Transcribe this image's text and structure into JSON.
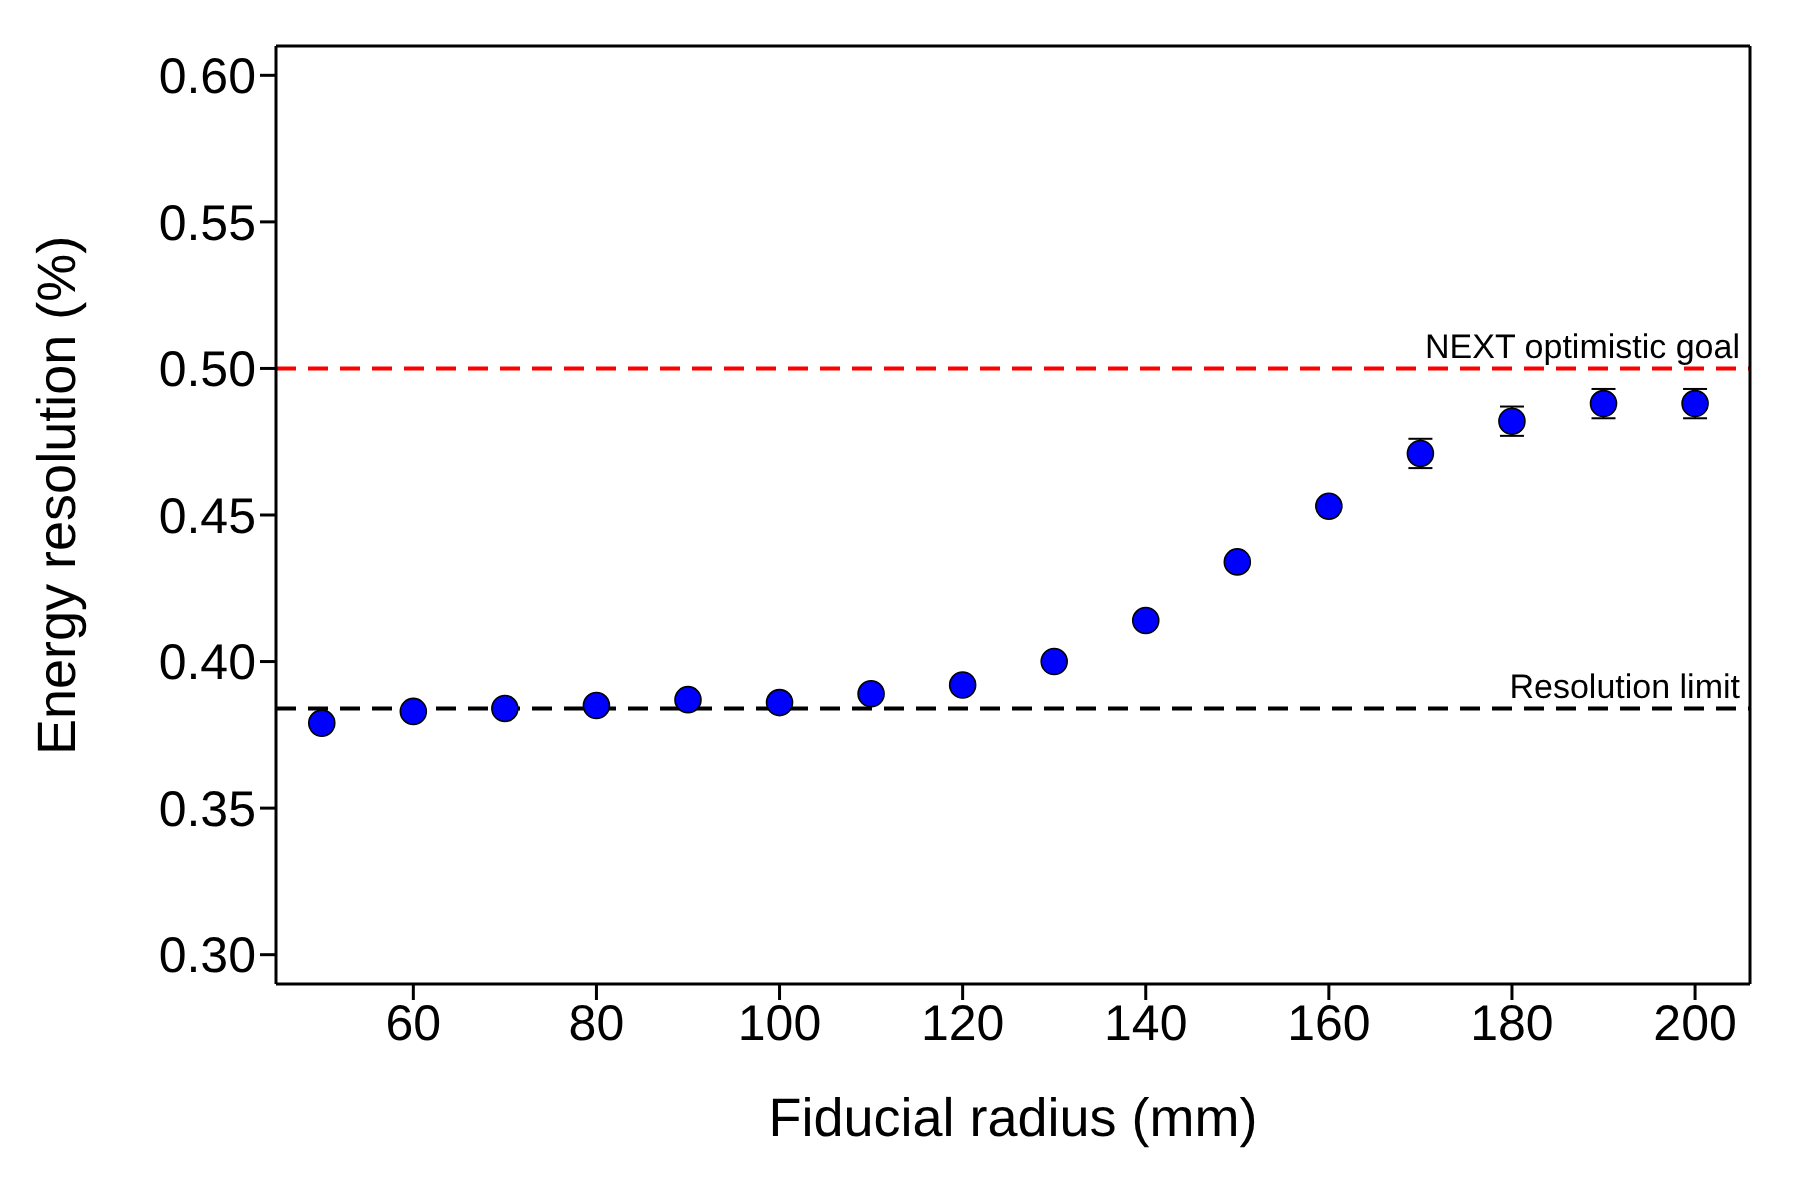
{
  "chart_data": {
    "type": "scatter",
    "xlabel": "Fiducial radius (mm)",
    "ylabel": "Energy resolution (%)",
    "x": [
      50,
      60,
      70,
      80,
      90,
      100,
      110,
      120,
      130,
      140,
      150,
      160,
      170,
      180,
      190,
      200
    ],
    "series": [
      {
        "color": "#0000ff",
        "values": [
          0.379,
          0.383,
          0.384,
          0.385,
          0.387,
          0.386,
          0.389,
          0.392,
          0.4,
          0.414,
          0.434,
          0.453,
          0.471,
          0.482,
          0.488,
          0.488
        ],
        "errors": [
          null,
          null,
          null,
          null,
          null,
          null,
          null,
          null,
          null,
          null,
          null,
          null,
          0.005,
          0.005,
          0.005,
          0.005
        ]
      }
    ],
    "xlim": [
      45,
      206
    ],
    "xticks": [
      60,
      80,
      100,
      120,
      140,
      160,
      180,
      200
    ],
    "ylim": [
      0.29,
      0.61
    ],
    "yticks": [
      {
        "value": 0.3,
        "label": "0.30"
      },
      {
        "value": 0.35,
        "label": "0.35"
      },
      {
        "value": 0.4,
        "label": "0.40"
      },
      {
        "value": 0.45,
        "label": "0.45"
      },
      {
        "value": 0.5,
        "label": "0.50"
      },
      {
        "value": 0.55,
        "label": "0.55"
      },
      {
        "value": 0.6,
        "label": "0.60"
      }
    ],
    "ref_lines": [
      {
        "axis": "y",
        "value": 0.5,
        "label": "NEXT optimistic goal",
        "color": "#ff0000",
        "line_style": "dashed"
      },
      {
        "axis": "y",
        "value": 0.384,
        "label": "Resolution limit",
        "color": "#000000",
        "line_style": "dashed"
      }
    ],
    "marker": "circle",
    "legend": false
  }
}
